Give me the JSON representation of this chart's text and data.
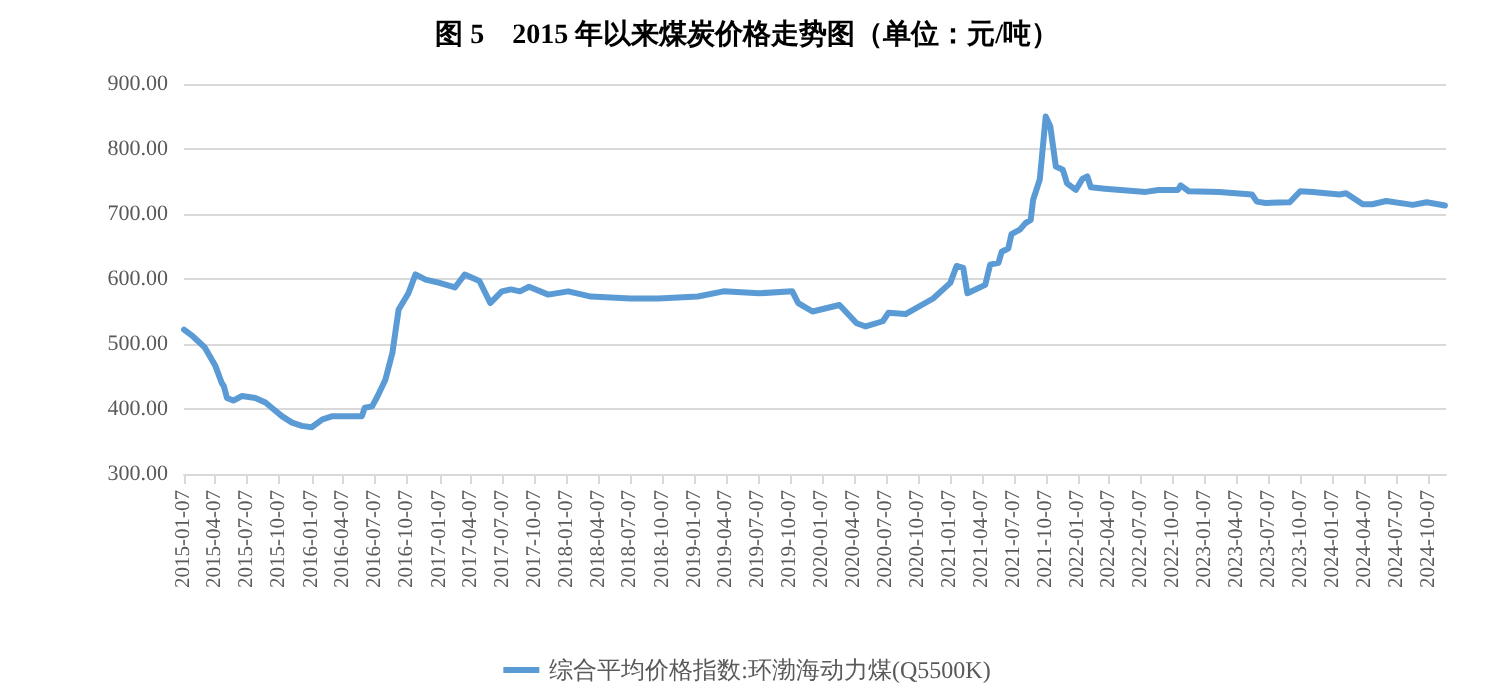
{
  "chart_data": {
    "type": "line",
    "title": "图 5　2015 年以来煤炭价格走势图（单位：元/吨）",
    "series": [
      {
        "name": "综合平均价格指数:环渤海动力煤(Q5500K)",
        "color": "#5b9bd5",
        "x": [
          "2015-01-07",
          "2015-02-01",
          "2015-03-07",
          "2015-04-07",
          "2015-04-25",
          "2015-05-01",
          "2015-05-10",
          "2015-05-28",
          "2015-06-22",
          "2015-07-30",
          "2015-08-28",
          "2015-09-15",
          "2015-10-14",
          "2015-11-12",
          "2015-12-10",
          "2016-01-07",
          "2016-02-07",
          "2016-03-07",
          "2016-04-05",
          "2016-05-30",
          "2016-06-07",
          "2016-06-28",
          "2016-07-14",
          "2016-08-05",
          "2016-08-25",
          "2016-09-12",
          "2016-10-10",
          "2016-10-30",
          "2016-11-28",
          "2017-01-07",
          "2017-02-20",
          "2017-03-20",
          "2017-05-01",
          "2017-06-01",
          "2017-07-04",
          "2017-07-30",
          "2017-08-25",
          "2017-09-20",
          "2017-11-14",
          "2018-01-10",
          "2018-03-16",
          "2018-07-07",
          "2018-09-25",
          "2019-01-16",
          "2019-03-30",
          "2019-07-10",
          "2019-10-13",
          "2019-10-30",
          "2019-12-10",
          "2020-02-25",
          "2020-04-14",
          "2020-05-10",
          "2020-06-28",
          "2020-07-14",
          "2020-09-01",
          "2020-11-19",
          "2021-01-07",
          "2021-01-25",
          "2021-02-13",
          "2021-02-25",
          "2021-04-17",
          "2021-05-01",
          "2021-05-25",
          "2021-06-03",
          "2021-06-22",
          "2021-07-01",
          "2021-07-25",
          "2021-08-10",
          "2021-08-25",
          "2021-09-01",
          "2021-09-20",
          "2021-10-07",
          "2021-10-20",
          "2021-11-05",
          "2021-11-25",
          "2021-12-07",
          "2022-01-01",
          "2022-01-20",
          "2022-02-03",
          "2022-02-13",
          "2022-03-25",
          "2022-07-20",
          "2022-08-25",
          "2022-10-20",
          "2022-10-28",
          "2022-11-20",
          "2023-02-15",
          "2023-05-20",
          "2023-06-03",
          "2023-06-28",
          "2023-09-05",
          "2023-10-05",
          "2023-11-10",
          "2024-01-25",
          "2024-02-13",
          "2024-04-01",
          "2024-04-28",
          "2024-06-07",
          "2024-08-22",
          "2024-10-01",
          "2024-11-22"
        ],
        "values": [
          522,
          512,
          495,
          466,
          440,
          435,
          417,
          413,
          420,
          417,
          410,
          402,
          389,
          379,
          374,
          372,
          384,
          389,
          389,
          389,
          402,
          404,
          420,
          445,
          486,
          553,
          578,
          607,
          599,
          594,
          587,
          607,
          597,
          563,
          581,
          584,
          581,
          588,
          576,
          581,
          573,
          570,
          570,
          573,
          581,
          578,
          581,
          563,
          550,
          560,
          532,
          527,
          535,
          548,
          546,
          570,
          594,
          620,
          617,
          578,
          591,
          622,
          625,
          642,
          647,
          669,
          676,
          686,
          691,
          722,
          753,
          850,
          835,
          773,
          768,
          747,
          737,
          754,
          758,
          741,
          739,
          734,
          737,
          737,
          744,
          735,
          734,
          730,
          719,
          717,
          718,
          735,
          734,
          730,
          732,
          715,
          715,
          720,
          714,
          718,
          713
        ]
      }
    ],
    "xlim": [
      "2015-01-07",
      "2024-11-25"
    ],
    "xticks": [
      "2015-01-07",
      "2015-04-07",
      "2015-07-07",
      "2015-10-07",
      "2016-01-07",
      "2016-04-07",
      "2016-07-07",
      "2016-10-07",
      "2017-01-07",
      "2017-04-07",
      "2017-07-07",
      "2017-10-07",
      "2018-01-07",
      "2018-04-07",
      "2018-07-07",
      "2018-10-07",
      "2019-01-07",
      "2019-04-07",
      "2019-07-07",
      "2019-10-07",
      "2020-01-07",
      "2020-04-07",
      "2020-07-07",
      "2020-10-07",
      "2021-01-07",
      "2021-04-07",
      "2021-07-07",
      "2021-10-07",
      "2022-01-07",
      "2022-04-07",
      "2022-07-07",
      "2022-10-07",
      "2023-01-07",
      "2023-04-07",
      "2023-07-07",
      "2023-10-07",
      "2024-01-07",
      "2024-04-07",
      "2024-07-07",
      "2024-10-07"
    ],
    "ylim": [
      300,
      900
    ],
    "yticks": [
      {
        "value": 300,
        "label": "300.00"
      },
      {
        "value": 400,
        "label": "400.00"
      },
      {
        "value": 500,
        "label": "500.00"
      },
      {
        "value": 600,
        "label": "600.00"
      },
      {
        "value": 700,
        "label": "700.00"
      },
      {
        "value": 800,
        "label": "800.00"
      },
      {
        "value": 900,
        "label": "900.00"
      }
    ],
    "grid": "y",
    "legend": "bottom",
    "marker": "none",
    "line_style": "solid"
  }
}
